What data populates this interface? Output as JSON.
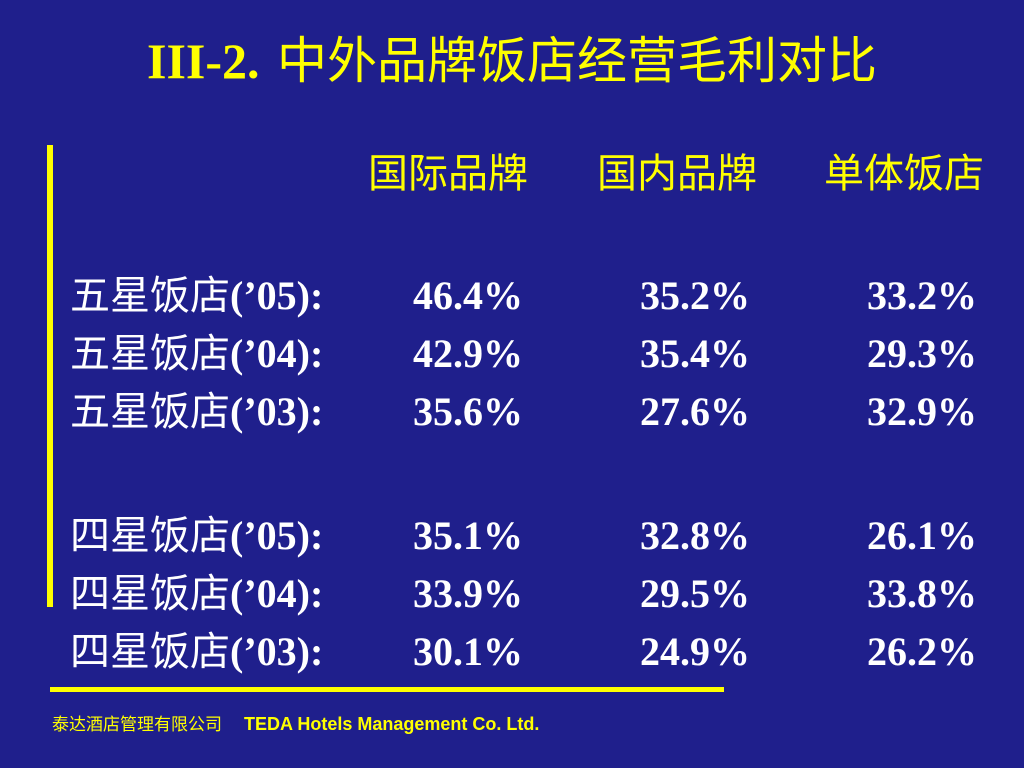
{
  "slide": {
    "title_prefix": "III-2.",
    "title_main": "中外品牌饭店经营毛利对比"
  },
  "columns": [
    "国际品牌",
    "国内品牌",
    "单体饭店"
  ],
  "rows": [
    {
      "label_cn": "五星饭店",
      "label_year": "(’05):",
      "values": [
        "46.4%",
        "35.2%",
        "33.2%"
      ]
    },
    {
      "label_cn": "五星饭店",
      "label_year": "(’04):",
      "values": [
        "42.9%",
        "35.4%",
        "29.3%"
      ]
    },
    {
      "label_cn": "五星饭店",
      "label_year": "(’03):",
      "values": [
        "35.6%",
        "27.6%",
        "32.9%"
      ]
    },
    {
      "label_cn": "四星饭店",
      "label_year": "(’05):",
      "values": [
        "35.1%",
        "32.8%",
        "26.1%"
      ]
    },
    {
      "label_cn": "四星饭店",
      "label_year": "(’04):",
      "values": [
        "33.9%",
        "29.5%",
        "33.8%"
      ]
    },
    {
      "label_cn": "四星饭店",
      "label_year": "(’03):",
      "values": [
        "30.1%",
        "24.9%",
        "26.2%"
      ]
    }
  ],
  "footer": {
    "company_cn": "泰达酒店管理有限公司",
    "company_en": "TEDA Hotels Management Co. Ltd."
  },
  "colors": {
    "background": "#1f1f8c",
    "accent": "#ffff00",
    "text": "#ffffff"
  }
}
